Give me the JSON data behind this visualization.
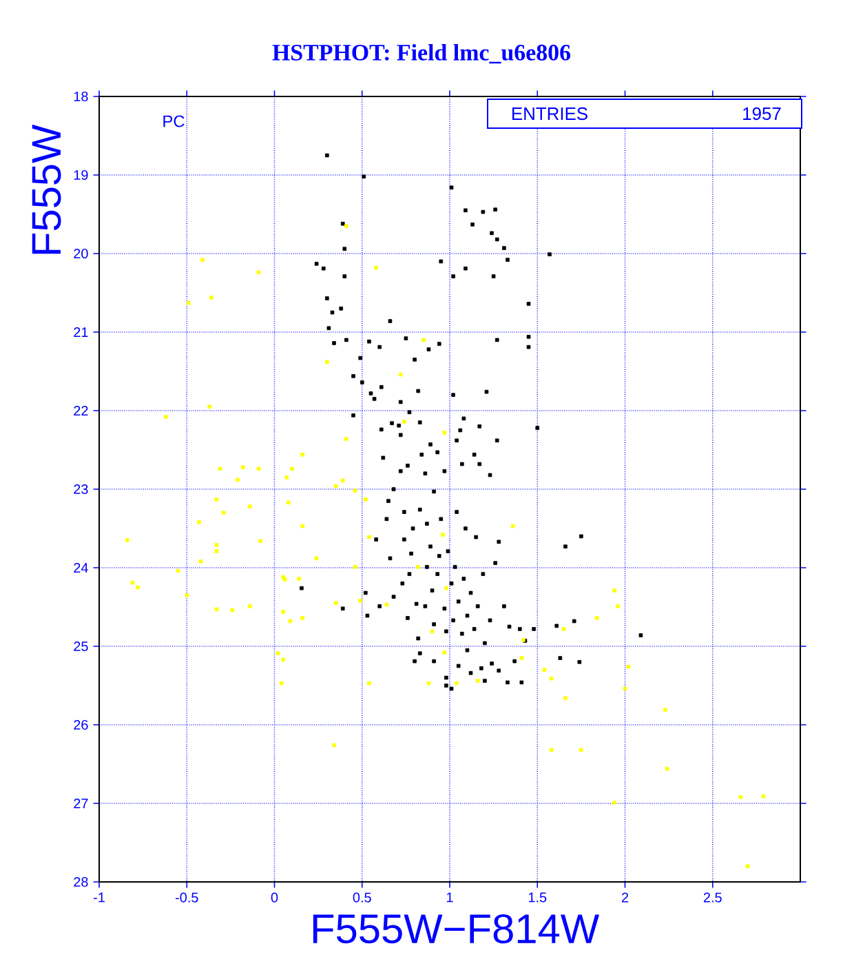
{
  "chart_data": {
    "type": "scatter",
    "title": "HSTPHOT: Field lmc_u6e806",
    "xlabel": "F555W−F814W",
    "ylabel": "F555W",
    "annotations": [
      "PC",
      "ENTRIES",
      "1957"
    ],
    "xlim": [
      -1,
      3
    ],
    "ylim": [
      28,
      18
    ],
    "xticks": [
      -1,
      -0.5,
      0,
      0.5,
      1,
      1.5,
      2,
      2.5
    ],
    "yticks": [
      18,
      19,
      20,
      21,
      22,
      23,
      24,
      25,
      26,
      27,
      28
    ],
    "grid": true,
    "marker": "square",
    "series": [
      {
        "color": "#000000",
        "x": [
          0.3,
          0.51,
          1.01,
          1.09,
          1.19,
          1.26,
          1.13,
          1.24,
          1.27,
          1.31,
          1.33,
          0.39,
          0.4,
          0.24,
          0.28,
          0.95,
          1.02,
          1.09,
          1.25,
          1.57,
          0.4,
          0.3,
          0.33,
          0.38,
          0.31,
          0.66,
          1.45,
          0.34,
          0.41,
          0.54,
          0.6,
          0.75,
          0.88,
          0.94,
          1.27,
          1.45,
          1.45,
          0.49,
          0.8,
          0.45,
          0.5,
          0.61,
          0.55,
          0.57,
          0.82,
          1.02,
          1.21,
          0.45,
          0.72,
          0.77,
          0.67,
          0.71,
          0.83,
          0.61,
          1.08,
          1.17,
          1.5,
          1.06,
          0.72,
          0.89,
          1.04,
          1.27,
          0.62,
          0.84,
          0.93,
          1.14,
          0.76,
          1.07,
          1.17,
          0.72,
          0.86,
          0.97,
          1.23,
          0.155,
          0.39,
          0.58,
          0.64,
          0.65,
          0.68,
          0.74,
          0.74,
          0.79,
          0.78,
          0.83,
          0.87,
          0.89,
          0.91,
          0.95,
          0.99,
          1.04,
          1.09,
          1.15,
          1.28,
          1.26,
          0.52,
          0.53,
          0.6,
          0.66,
          0.68,
          0.73,
          0.76,
          0.77,
          0.81,
          0.82,
          0.86,
          0.87,
          0.9,
          0.91,
          0.93,
          0.94,
          0.97,
          0.98,
          1.01,
          1.02,
          1.03,
          1.05,
          1.07,
          1.08,
          1.1,
          1.12,
          1.14,
          1.16,
          1.19,
          1.2,
          1.23,
          1.31,
          1.34,
          1.4,
          1.43,
          1.48,
          1.71,
          1.61,
          1.63,
          1.74,
          0.8,
          0.83,
          0.91,
          0.98,
          0.98,
          1.01,
          1.05,
          1.1,
          1.12,
          1.18,
          1.2,
          1.24,
          1.28,
          1.33,
          1.41,
          1.37,
          1.75,
          1.66,
          2.09
        ],
        "values": [
          18.75,
          19.02,
          19.16,
          19.45,
          19.47,
          19.44,
          19.63,
          19.74,
          19.82,
          19.93,
          20.08,
          19.62,
          19.94,
          20.13,
          20.19,
          20.1,
          20.29,
          20.19,
          20.29,
          20.01,
          20.29,
          20.57,
          20.75,
          20.7,
          20.95,
          20.86,
          20.64,
          21.14,
          21.1,
          21.12,
          21.19,
          21.08,
          21.22,
          21.15,
          21.1,
          21.06,
          21.19,
          21.33,
          21.35,
          21.56,
          21.64,
          21.7,
          21.78,
          21.85,
          21.75,
          21.8,
          21.76,
          22.06,
          21.89,
          22.02,
          22.16,
          22.19,
          22.15,
          22.24,
          22.1,
          22.2,
          22.22,
          22.25,
          22.31,
          22.43,
          22.38,
          22.38,
          22.6,
          22.56,
          22.53,
          22.56,
          22.7,
          22.68,
          22.68,
          22.77,
          22.8,
          22.77,
          22.82,
          24.26,
          24.52,
          23.64,
          23.38,
          23.15,
          23.0,
          23.29,
          23.64,
          23.5,
          23.82,
          23.26,
          23.44,
          23.73,
          23.03,
          23.38,
          23.79,
          23.29,
          23.5,
          23.61,
          23.67,
          23.94,
          24.32,
          24.61,
          24.49,
          23.88,
          24.37,
          24.2,
          24.64,
          24.08,
          24.46,
          24.9,
          24.49,
          23.99,
          24.29,
          24.72,
          24.08,
          23.85,
          24.52,
          24.81,
          24.2,
          24.67,
          23.99,
          24.43,
          24.84,
          24.14,
          24.61,
          24.32,
          24.78,
          24.49,
          24.08,
          24.96,
          24.67,
          24.49,
          24.75,
          24.78,
          24.93,
          24.78,
          24.68,
          24.74,
          25.15,
          25.2,
          25.19,
          25.09,
          25.19,
          25.4,
          25.5,
          25.54,
          25.25,
          25.05,
          25.34,
          25.28,
          25.44,
          25.22,
          25.31,
          25.46,
          25.46,
          25.19,
          23.6,
          23.73,
          24.86
        ]
      },
      {
        "color": "#ffff00",
        "x": [
          -0.41,
          -0.09,
          -0.36,
          -0.49,
          -0.37,
          -0.62,
          0.3,
          0.41,
          0.16,
          -0.18,
          -0.31,
          -0.09,
          0.1,
          -0.21,
          0.07,
          0.39,
          0.35,
          0.46,
          -0.33,
          0.08,
          -0.14,
          -0.29,
          -0.43,
          0.16,
          0.52,
          0.54,
          -0.84,
          -0.08,
          -0.33,
          -0.33,
          -0.42,
          0.24,
          0.46,
          -0.55,
          -0.81,
          -0.78,
          -0.5,
          0.05,
          0.06,
          0.14,
          0.35,
          0.49,
          -0.33,
          -0.24,
          -0.14,
          0.05,
          0.09,
          0.16,
          0.02,
          0.05,
          0.04,
          0.54,
          0.34,
          0.58,
          0.41,
          0.85,
          0.72,
          0.74,
          0.97,
          0.96,
          0.98,
          0.64,
          0.82,
          0.9,
          0.88,
          1.04,
          0.97,
          1.16,
          1.36,
          1.41,
          1.42,
          1.54,
          1.58,
          1.65,
          1.84,
          1.66,
          1.94,
          1.96,
          2.02,
          2.0,
          2.23,
          1.58,
          1.75,
          2.24,
          1.94,
          2.66,
          2.79,
          2.7
        ],
        "values": [
          20.08,
          20.24,
          20.56,
          20.63,
          21.95,
          22.08,
          21.38,
          22.36,
          22.56,
          22.72,
          22.74,
          22.74,
          22.74,
          22.88,
          22.85,
          22.89,
          22.96,
          23.02,
          23.13,
          23.17,
          23.22,
          23.3,
          23.42,
          23.47,
          23.13,
          23.61,
          23.65,
          23.66,
          23.71,
          23.79,
          23.92,
          23.88,
          23.99,
          24.04,
          24.19,
          24.25,
          24.35,
          24.12,
          24.15,
          24.14,
          24.45,
          24.42,
          24.53,
          24.54,
          24.49,
          24.56,
          24.68,
          24.64,
          25.09,
          25.17,
          25.47,
          25.47,
          26.26,
          20.18,
          19.65,
          21.1,
          21.54,
          22.14,
          22.28,
          23.58,
          24.26,
          24.47,
          23.99,
          24.81,
          25.47,
          25.47,
          25.08,
          25.44,
          23.47,
          25.15,
          24.92,
          25.3,
          25.41,
          24.78,
          24.64,
          25.66,
          24.29,
          24.49,
          25.26,
          25.54,
          25.81,
          26.32,
          26.32,
          26.56,
          26.99,
          26.92,
          26.91,
          27.8
        ]
      }
    ]
  }
}
